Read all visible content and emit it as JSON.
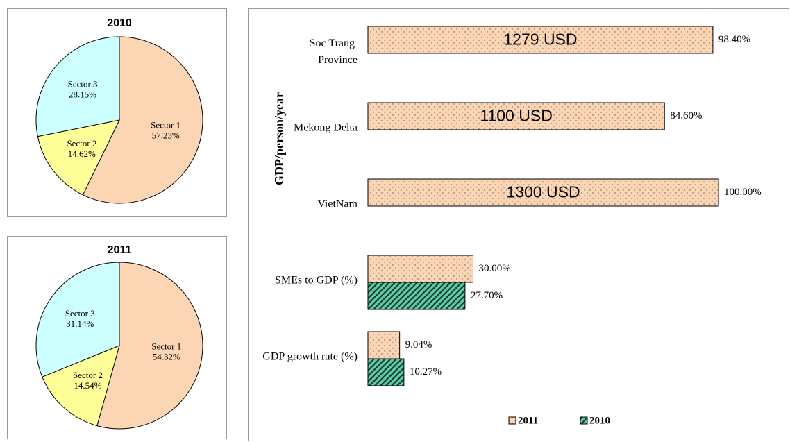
{
  "chart_data": [
    {
      "type": "pie",
      "title": "2010",
      "categories": [
        "Sector 1",
        "Sector 2",
        "Sector 3"
      ],
      "values": [
        57.23,
        14.62,
        28.15
      ],
      "value_labels": [
        "57.23%",
        "14.62%",
        "28.15%"
      ],
      "colors": [
        "#fcd5b4",
        "#ffff99",
        "#ccffff"
      ]
    },
    {
      "type": "pie",
      "title": "2011",
      "categories": [
        "Sector 1",
        "Sector 2",
        "Sector 3"
      ],
      "values": [
        54.32,
        14.54,
        31.14
      ],
      "value_labels": [
        "54.32%",
        "14.54%",
        "31.14%"
      ],
      "colors": [
        "#fcd5b4",
        "#ffff99",
        "#ccffff"
      ]
    },
    {
      "type": "hbar",
      "y_label": "GDP/person/year",
      "categories": [
        "Soc Trang Province",
        "Mekong Delta",
        "VietNam",
        "SMEs to GDP (%)",
        "GDP growth rate (%)"
      ],
      "series": [
        {
          "name": "2011",
          "color": "#fcd5b4",
          "pattern": "dots",
          "values": [
            98.4,
            84.6,
            100.0,
            30.0,
            9.04
          ],
          "value_labels": [
            "98.40%",
            "84.60%",
            "100.00%",
            "30.00%",
            "9.04%"
          ],
          "inner_labels": [
            "1279 USD",
            "1100 USD",
            "1300 USD",
            null,
            null
          ]
        },
        {
          "name": "2010",
          "color": "#5fcca6",
          "pattern": "hatch",
          "values": [
            null,
            null,
            null,
            27.7,
            10.27
          ],
          "value_labels": [
            null,
            null,
            null,
            "27.70%",
            "10.27%"
          ]
        }
      ],
      "legend": "bottom"
    }
  ]
}
